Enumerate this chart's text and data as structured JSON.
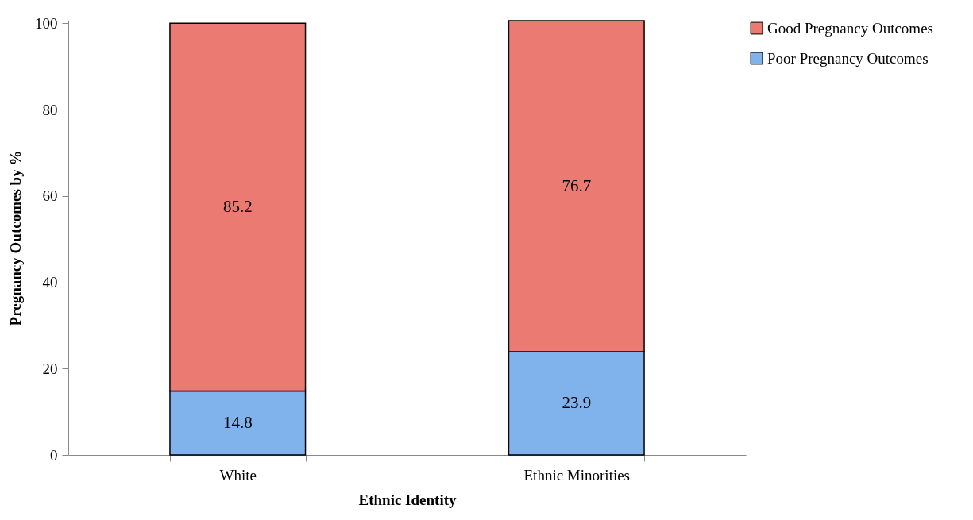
{
  "chart_data": {
    "type": "bar",
    "stacked": true,
    "xlabel": "Ethnic Identity",
    "ylabel": "Pregnancy Outcomes by %",
    "categories": [
      "White",
      "Ethnic Minorities"
    ],
    "series": [
      {
        "name": "Poor Pregnancy Outcomes",
        "color": "#80b2ec",
        "values": [
          14.8,
          23.9
        ]
      },
      {
        "name": "Good Pregnancy Outcomes",
        "color": "#eb7b72",
        "values": [
          85.2,
          76.7
        ]
      }
    ],
    "ylim": [
      0,
      100.6
    ],
    "yticks": [
      0,
      20,
      40,
      60,
      80,
      100
    ],
    "grid": false,
    "legend": "right",
    "data_labels": true
  }
}
